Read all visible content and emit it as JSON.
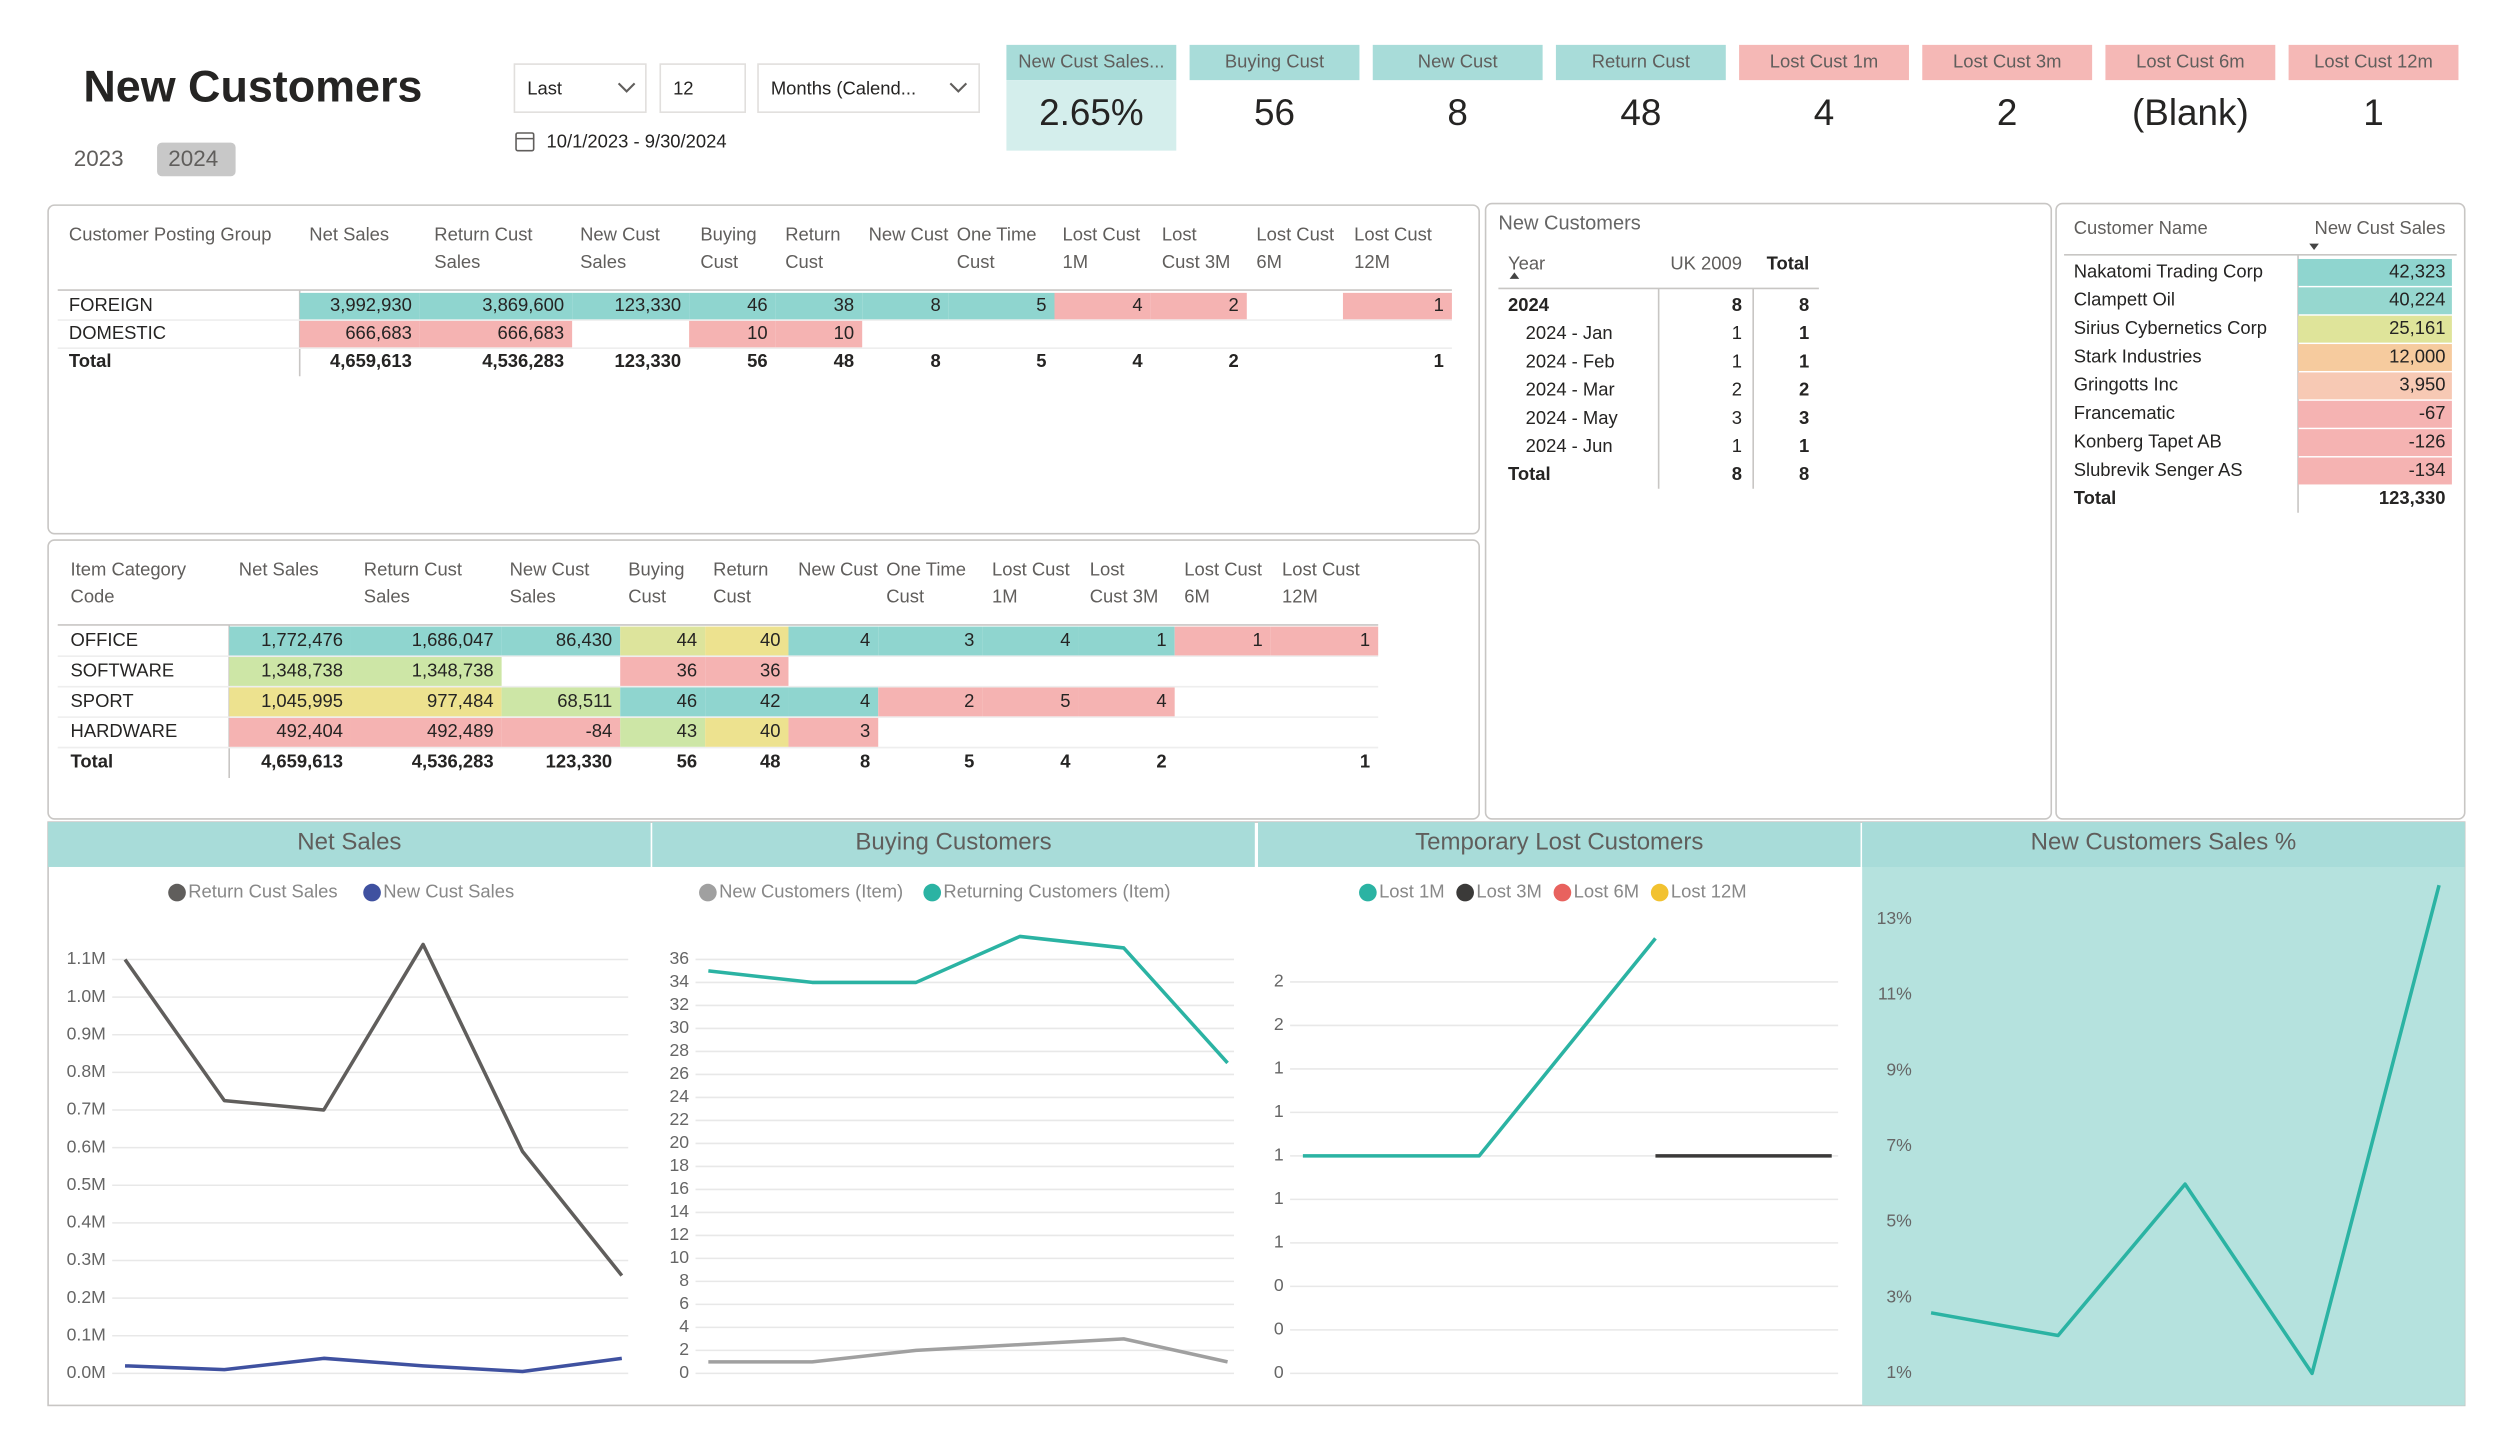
{
  "header": {
    "title": "New Customers",
    "years": [
      "2023",
      "2024"
    ],
    "filters": [
      "Last",
      "12",
      "Months (Calend..."
    ],
    "date_range": "10/1/2023 - 9/30/2024"
  },
  "kpis": [
    {
      "label": "New Cust Sales...",
      "value": "2.65%",
      "color": "#a8dcd9",
      "value_background": "#d4eeec"
    },
    {
      "label": "Buying Cust",
      "value": "56",
      "color": "#a8dcd9"
    },
    {
      "label": "New Cust",
      "value": "8",
      "color": "#a8dcd9"
    },
    {
      "label": "Return Cust",
      "value": "48",
      "color": "#a8dcd9"
    },
    {
      "label": "Lost Cust 1m",
      "value": "4",
      "color": "#f5b8b6"
    },
    {
      "label": "Lost Cust 3m",
      "value": "2",
      "color": "#f5b8b6"
    },
    {
      "label": "Lost Cust 6m",
      "value": "(Blank)",
      "color": "#f5b8b6"
    },
    {
      "label": "Lost Cust 12m",
      "value": "1",
      "color": "#f5b8b6"
    }
  ],
  "customer_group_table": {
    "columns": [
      "Customer Posting Group",
      "Net Sales",
      "Return Cust Sales",
      "New Cust Sales",
      "Buying Cust",
      "Return Cust",
      "New Cust",
      "One Time Cust",
      "Lost Cust 1M",
      "Lost Cust 3M",
      "Lost Cust 6M",
      "Lost Cust 12M"
    ],
    "rows": [
      {
        "cells": [
          "FOREIGN",
          "3,992,930",
          "3,869,600",
          "123,330",
          "46",
          "38",
          "8",
          "5",
          "4",
          "2",
          null,
          "1"
        ],
        "fills": [
          null,
          "#8fd5cf",
          "#8fd5cf",
          "#8fd5cf",
          "#8fd5cf",
          "#8fd5cf",
          "#8fd5cf",
          "#8fd5cf",
          "#f5b3b2",
          "#f5b3b2",
          null,
          "#f5b3b2"
        ]
      },
      {
        "cells": [
          "DOMESTIC",
          "666,683",
          "666,683",
          null,
          "10",
          "10",
          null,
          null,
          null,
          null,
          null,
          null
        ],
        "fills": [
          null,
          "#f5b3b2",
          "#f5b3b2",
          null,
          "#f5b3b2",
          "#f5b3b2",
          null,
          null,
          null,
          null,
          null,
          null
        ]
      },
      {
        "cells": [
          "Total",
          "4,659,613",
          "4,536,283",
          "123,330",
          "56",
          "48",
          "8",
          "5",
          "4",
          "2",
          null,
          "1"
        ]
      }
    ]
  },
  "item_category_table": {
    "columns": [
      "Item Category Code",
      "Net Sales",
      "Return Cust Sales",
      "New Cust Sales",
      "Buying Cust",
      "Return Cust",
      "New Cust",
      "One Time Cust",
      "Lost Cust 1M",
      "Lost Cust 3M",
      "Lost Cust 6M",
      "Lost Cust 12M"
    ],
    "rows": [
      {
        "cells": [
          "OFFICE",
          "1,772,476",
          "1,686,047",
          "86,430",
          "44",
          "40",
          "4",
          "3",
          "4",
          "1",
          "1",
          "1"
        ],
        "fills": [
          null,
          "#8fd5cf",
          "#8fd5cf",
          "#8fd5cf",
          "#dde49c",
          "#ede28f",
          "#8fd5cf",
          "#8fd5cf",
          "#8fd5cf",
          "#8fd5cf",
          "#f5b3b2",
          "#f5b3b2"
        ]
      },
      {
        "cells": [
          "SOFTWARE",
          "1,348,738",
          "1,348,738",
          null,
          "36",
          "36",
          null,
          null,
          null,
          null,
          null,
          null
        ],
        "fills": [
          null,
          "#cde6a6",
          "#cde6a6",
          null,
          "#f5b3b2",
          "#f5b3b2",
          null,
          null,
          null,
          null,
          null,
          null
        ]
      },
      {
        "cells": [
          "SPORT",
          "1,045,995",
          "977,484",
          "68,511",
          "46",
          "42",
          "4",
          "2",
          "5",
          "4",
          null,
          null
        ],
        "fills": [
          null,
          "#ede28f",
          "#ede28f",
          "#cde6a6",
          "#8fd5cf",
          "#8fd5cf",
          "#8fd5cf",
          "#f5b3b2",
          "#f5b3b2",
          "#f5b3b2",
          null,
          null
        ]
      },
      {
        "cells": [
          "HARDWARE",
          "492,404",
          "492,489",
          "-84",
          "43",
          "40",
          "3",
          null,
          null,
          null,
          null,
          null
        ],
        "fills": [
          null,
          "#f5b3b2",
          "#f5b3b2",
          "#f5b3b2",
          "#cde6a6",
          "#ede28f",
          "#f5b3b2",
          null,
          null,
          null,
          null,
          null
        ]
      },
      {
        "cells": [
          "Total",
          "4,659,613",
          "4,536,283",
          "123,330",
          "56",
          "48",
          "8",
          "5",
          "4",
          "2",
          null,
          "1"
        ]
      }
    ]
  },
  "matrix": {
    "title": "New Customers",
    "columns": [
      "Year",
      "UK 2009",
      "Total"
    ],
    "rows": [
      [
        "2024",
        "8",
        "8"
      ],
      [
        "2024 - Jan",
        "1",
        "1"
      ],
      [
        "2024 - Feb",
        "1",
        "1"
      ],
      [
        "2024 - Mar",
        "2",
        "2"
      ],
      [
        "2024 - May",
        "3",
        "3"
      ],
      [
        "2024 - Jun",
        "1",
        "1"
      ],
      [
        "Total",
        "8",
        "8"
      ]
    ]
  },
  "customer_table": {
    "columns": [
      "Customer Name",
      "New Cust Sales"
    ],
    "rows": [
      {
        "cells": [
          "Nakatomi Trading Corp",
          "42,323"
        ],
        "fill": "#8fd5cf"
      },
      {
        "cells": [
          "Clampett Oil",
          "40,224"
        ],
        "fill": "#96d7cf"
      },
      {
        "cells": [
          "Sirius Cybernetics Corp",
          "25,161"
        ],
        "fill": "#dfe49a"
      },
      {
        "cells": [
          "Stark Industries",
          "12,000"
        ],
        "fill": "#f6cb9e"
      },
      {
        "cells": [
          "Gringotts Inc",
          "3,950"
        ],
        "fill": "#f7c9b4"
      },
      {
        "cells": [
          "Francematic",
          "-67"
        ],
        "fill": "#f5b3b2"
      },
      {
        "cells": [
          "Konberg Tapet AB",
          "-126"
        ],
        "fill": "#f5b3b2"
      },
      {
        "cells": [
          "Slubrevik Senger AS",
          "-134"
        ],
        "fill": "#f5b3b2"
      },
      {
        "cells": [
          "Total",
          "123,330"
        ]
      }
    ]
  },
  "chart_data": [
    {
      "type": "line",
      "title": "Net Sales",
      "title_background": "#a8dcd9",
      "grid": true,
      "legend": "top",
      "categories": [
        null,
        null,
        null,
        null,
        null,
        null
      ],
      "series": [
        {
          "name": "Return Cust Sales",
          "color": "#605e5c",
          "values": [
            1100000,
            725000,
            700000,
            1140000,
            590000,
            260000
          ]
        },
        {
          "name": "New Cust Sales",
          "color": "#3f51a0",
          "values": [
            20000,
            10000,
            40000,
            20000,
            5000,
            40000
          ]
        }
      ],
      "ylim": [
        0,
        1150000
      ],
      "yticks": [
        {
          "value": 0,
          "label": "0.0M"
        },
        {
          "value": 100000,
          "label": "0.1M"
        },
        {
          "value": 200000,
          "label": "0.2M"
        },
        {
          "value": 300000,
          "label": "0.3M"
        },
        {
          "value": 400000,
          "label": "0.4M"
        },
        {
          "value": 500000,
          "label": "0.5M"
        },
        {
          "value": 600000,
          "label": "0.6M"
        },
        {
          "value": 700000,
          "label": "0.7M"
        },
        {
          "value": 800000,
          "label": "0.8M"
        },
        {
          "value": 900000,
          "label": "0.9M"
        },
        {
          "value": 1000000,
          "label": "1.0M"
        },
        {
          "value": 1100000,
          "label": "1.1M"
        }
      ]
    },
    {
      "type": "line",
      "title": "Buying Customers",
      "title_background": "#a8dcd9",
      "grid": true,
      "legend": "top",
      "categories": [
        null,
        null,
        null,
        null,
        null,
        null
      ],
      "series": [
        {
          "name": "New Customers (Item)",
          "color": "#a0a0a0",
          "values": [
            1,
            1,
            2,
            2.5,
            3,
            1
          ]
        },
        {
          "name": "Returning Customers (Item)",
          "color": "#2bb3a3",
          "values": [
            35,
            34,
            34,
            38,
            37,
            27
          ]
        }
      ],
      "ylim": [
        0,
        40
      ],
      "yticks": [
        0,
        2,
        4,
        6,
        8,
        10,
        12,
        14,
        16,
        18,
        20,
        22,
        24,
        26,
        28,
        30,
        32,
        34,
        36
      ]
    },
    {
      "type": "line",
      "title": "Temporary Lost Customers",
      "title_background": "#a8dcd9",
      "grid": true,
      "legend": "top",
      "categories": [
        null,
        null,
        null,
        null
      ],
      "series": [
        {
          "name": "Lost 1M",
          "color": "#2bb3a3",
          "values": [
            1,
            1,
            2,
            null
          ]
        },
        {
          "name": "Lost 3M",
          "color": "#3b3a39",
          "values": [
            null,
            null,
            1,
            1
          ]
        },
        {
          "name": "Lost 6M",
          "color": "#e8625e",
          "values": [
            null,
            null,
            null,
            null
          ]
        },
        {
          "name": "Lost 12M",
          "color": "#f2c230",
          "values": [
            null,
            null,
            null,
            null
          ]
        }
      ],
      "ylim": [
        0,
        2.1
      ],
      "yticks": [
        0,
        {
          "value": 0.2,
          "label": "0"
        },
        {
          "value": 0.4,
          "label": "0"
        },
        {
          "value": 0.6,
          "label": "1"
        },
        {
          "value": 0.8,
          "label": "1"
        },
        1,
        {
          "value": 1.2,
          "label": "1"
        },
        {
          "value": 1.4,
          "label": "1"
        },
        {
          "value": 1.6,
          "label": "2"
        },
        {
          "value": 1.8,
          "label": "2"
        }
      ]
    },
    {
      "type": "line",
      "title": "New Customers Sales %",
      "title_background": "#a8dcd9",
      "plot_background": "#b5e2de",
      "grid": false,
      "categories": [
        null,
        null,
        null,
        null,
        null
      ],
      "series": [
        {
          "color": "#2bb3a3",
          "values": [
            2.6,
            2.0,
            6.0,
            1.0,
            13.9
          ]
        }
      ],
      "ylim": [
        1,
        14
      ],
      "yticks": [
        {
          "value": 1,
          "label": "1%"
        },
        {
          "value": 3,
          "label": "3%"
        },
        {
          "value": 5,
          "label": "5%"
        },
        {
          "value": 7,
          "label": "7%"
        },
        {
          "value": 9,
          "label": "9%"
        },
        {
          "value": 11,
          "label": "11%"
        },
        {
          "value": 13,
          "label": "13%"
        }
      ]
    }
  ]
}
